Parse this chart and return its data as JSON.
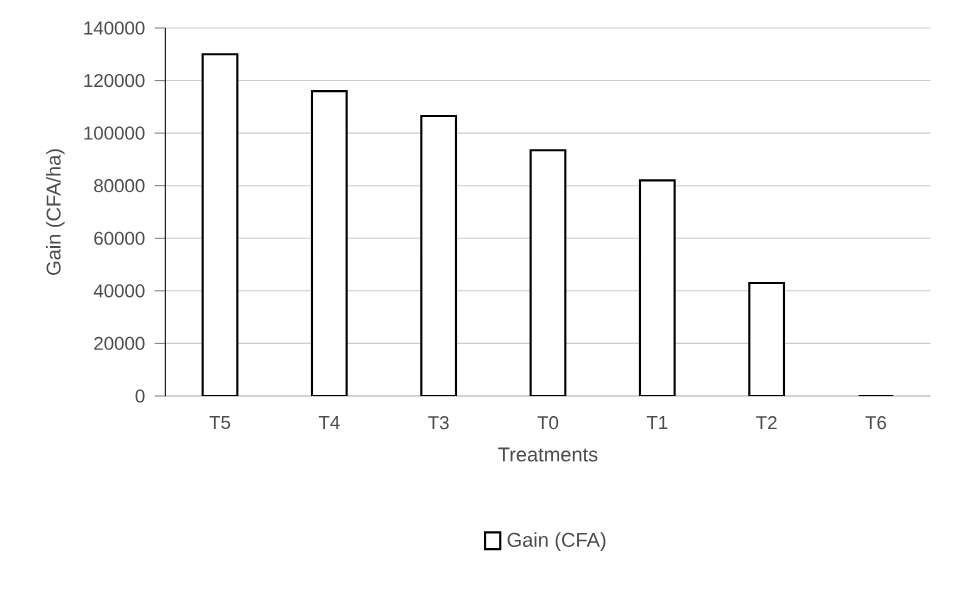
{
  "chart_data": {
    "type": "bar",
    "xlabel": "Treatments",
    "ylabel": "Gain (CFA/ha)",
    "categories": [
      "T5",
      "T4",
      "T3",
      "T0",
      "T1",
      "T2",
      "T6"
    ],
    "series": [
      {
        "name": "Gain (CFA)",
        "color": "#ffffff",
        "values": [
          130000,
          116000,
          106500,
          93500,
          82000,
          43000,
          0
        ]
      }
    ],
    "ylim": [
      0,
      140000
    ],
    "yticks": [
      0,
      20000,
      40000,
      60000,
      80000,
      100000,
      120000,
      140000
    ],
    "grid": "y",
    "legend": "bottom"
  }
}
